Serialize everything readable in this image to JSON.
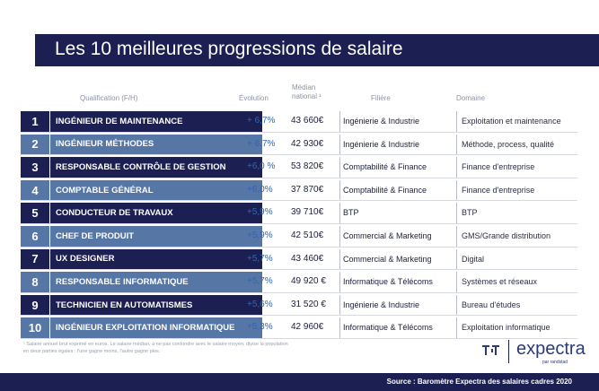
{
  "title": "Les 10 meilleures progressions de salaire",
  "headers": {
    "qualification": "Qualification (F/H)",
    "evolution": "Évolution",
    "median_line1": "Médian",
    "median_line2": "national ¹",
    "filiere": "Filière",
    "domaine": "Domaine"
  },
  "rows": [
    {
      "rank": "1",
      "qualification": "INGÉNIEUR DE MAINTENANCE",
      "evolution": "+ 6,7%",
      "median": "43 660€",
      "filiere": "Ingénierie & Industrie",
      "domaine": "Exploitation et maintenance"
    },
    {
      "rank": "2",
      "qualification": "INGÉNIEUR MÉTHODES",
      "evolution": "+ 6,7%",
      "median": "42 930€",
      "filiere": "Ingénierie & Industrie",
      "domaine": "Méthode, process, qualité"
    },
    {
      "rank": "3",
      "qualification": "RESPONSABLE CONTRÔLE DE GESTION",
      "evolution": "+6,0 %",
      "median": "53 820€",
      "filiere": "Comptabilité & Finance",
      "domaine": "Finance d'entreprise"
    },
    {
      "rank": "4",
      "qualification": "COMPTABLE GÉNÉRAL",
      "evolution": "+6,0%",
      "median": "37 870€",
      "filiere": "Comptabilité & Finance",
      "domaine": "Finance d'entreprise"
    },
    {
      "rank": "5",
      "qualification": "CONDUCTEUR DE TRAVAUX",
      "evolution": "+5,9%",
      "median": "39 710€",
      "filiere": "BTP",
      "domaine": "BTP"
    },
    {
      "rank": "6",
      "qualification": "CHEF DE PRODUIT",
      "evolution": "+5,9%",
      "median": "42 510€",
      "filiere": "Commercial & Marketing",
      "domaine": "GMS/Grande distribution"
    },
    {
      "rank": "7",
      "qualification": "UX DESIGNER",
      "evolution": "+5,7%",
      "median": "43 460€",
      "filiere": "Commercial & Marketing",
      "domaine": "Digital"
    },
    {
      "rank": "8",
      "qualification": "RESPONSABLE INFORMATIQUE",
      "evolution": "+5,7%",
      "median": "49 920 €",
      "filiere": "Informatique & Télécoms",
      "domaine": "Systèmes et réseaux"
    },
    {
      "rank": "9",
      "qualification": "TECHNICIEN EN AUTOMATISMES",
      "evolution": "+5,6%",
      "median": "31 520 €",
      "filiere": "Ingénierie & Industrie",
      "domaine": "Bureau d'études"
    },
    {
      "rank": "10",
      "qualification": "INGÉNIEUR EXPLOITATION INFORMATIQUE",
      "evolution": "+5,3%",
      "median": "42 960€",
      "filiere": "Informatique & Télécoms",
      "domaine": "Exploitation informatique"
    }
  ],
  "footnote": "¹ Salaire annuel brut exprimé en euros. Le salaire médian, à ne pas confondre avec le salaire moyen, divise la population en deux parties égales : l'une gagne moins, l'autre gagne plus.",
  "logo": {
    "word": "expectra",
    "sub": "par randstad"
  },
  "source": "Source : Baromètre  Expectra des salaires cadres 2020",
  "colors": {
    "navy": "#1c1f52",
    "steel_blue": "#5676a6",
    "evolution_blue": "#2f66b0"
  }
}
